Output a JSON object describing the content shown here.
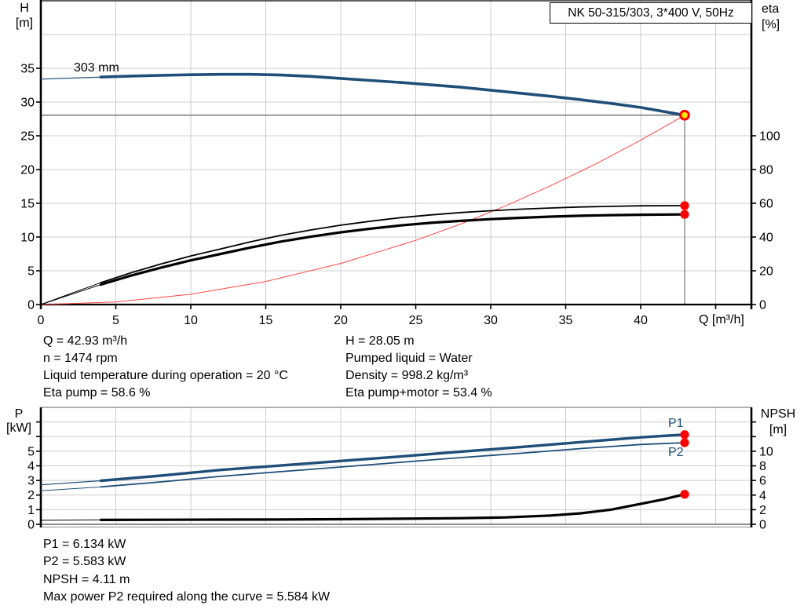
{
  "title_box": {
    "text": "NK 50-315/303, 3*400 V, 50Hz"
  },
  "colors": {
    "curve_blue": "#1f4e79",
    "system_red": "#ff4545",
    "curve_black": "#000000",
    "marker_red": "#ff0000",
    "marker_yellow": "#ffe600",
    "grid": "#cccccc",
    "duty_line": "#8c8c8c",
    "axis": "#000000"
  },
  "chart_data": [
    {
      "type": "line",
      "id": "head-efficiency-chart",
      "title": "NK 50-315/303, 3*400 V, 50Hz",
      "x": {
        "label": "Q [m³/h]",
        "ticks": [
          0,
          5,
          10,
          15,
          20,
          25,
          30,
          35,
          40
        ],
        "extra_ticks": [
          45
        ],
        "range": [
          0,
          47.4
        ],
        "grid": true
      },
      "y_left": {
        "label": "H",
        "unit": "[m]",
        "ticks": [
          0,
          5,
          10,
          15,
          20,
          25,
          30,
          35
        ],
        "range": [
          0,
          45
        ],
        "grid": true
      },
      "y_right": {
        "label": "eta",
        "unit": "[%]",
        "ticks": [
          0,
          20,
          40,
          60,
          80,
          100
        ],
        "range": [
          0,
          180
        ]
      },
      "series": [
        {
          "name": "pump-curve-303mm",
          "label": "303 mm",
          "axis": "left",
          "color_key": "curve_blue",
          "split_at": 4,
          "width_thin": 1.2,
          "width_thick": 3.6,
          "points": [
            [
              0,
              33.4
            ],
            [
              2,
              33.55
            ],
            [
              4,
              33.7
            ],
            [
              6,
              33.85
            ],
            [
              8,
              33.95
            ],
            [
              10,
              34.05
            ],
            [
              12,
              34.1
            ],
            [
              14,
              34.1
            ],
            [
              16,
              34.0
            ],
            [
              18,
              33.8
            ],
            [
              20,
              33.5
            ],
            [
              22,
              33.2
            ],
            [
              24,
              32.9
            ],
            [
              26,
              32.55
            ],
            [
              28,
              32.2
            ],
            [
              30,
              31.75
            ],
            [
              32,
              31.3
            ],
            [
              34,
              30.85
            ],
            [
              36,
              30.35
            ],
            [
              38,
              29.8
            ],
            [
              40,
              29.2
            ],
            [
              42.93,
              28.05
            ]
          ]
        },
        {
          "name": "system-curve",
          "label": "",
          "axis": "left",
          "color_key": "system_red",
          "split_at": null,
          "width_thin": 1,
          "width_thick": 1,
          "points": [
            [
              0,
              0
            ],
            [
              5,
              0.38
            ],
            [
              10,
              1.52
            ],
            [
              15,
              3.42
            ],
            [
              20,
              6.09
            ],
            [
              25,
              9.51
            ],
            [
              28,
              11.93
            ],
            [
              31,
              14.63
            ],
            [
              34,
              17.6
            ],
            [
              37,
              20.83
            ],
            [
              40,
              24.35
            ],
            [
              42.93,
              28.05
            ]
          ]
        },
        {
          "name": "eta-pump-curve",
          "label": "",
          "axis": "right",
          "color_key": "curve_black",
          "split_at": 4,
          "width_thin": 1,
          "width_thick": 1.8,
          "points": [
            [
              0,
              0
            ],
            [
              2,
              6.5
            ],
            [
              4,
              13
            ],
            [
              6,
              18.8
            ],
            [
              8,
              24
            ],
            [
              10,
              28.8
            ],
            [
              12,
              33
            ],
            [
              14,
              37.2
            ],
            [
              16,
              41
            ],
            [
              18,
              44.2
            ],
            [
              20,
              47
            ],
            [
              22,
              49.4
            ],
            [
              24,
              51.5
            ],
            [
              26,
              53.1
            ],
            [
              28,
              54.5
            ],
            [
              30,
              55.6
            ],
            [
              32,
              56.5
            ],
            [
              34,
              57.2
            ],
            [
              36,
              57.8
            ],
            [
              38,
              58.2
            ],
            [
              40,
              58.5
            ],
            [
              42.93,
              58.6
            ]
          ]
        },
        {
          "name": "eta-pump-motor-curve",
          "label": "",
          "axis": "right",
          "color_key": "curve_black",
          "split_at": 4,
          "width_thin": 1,
          "width_thick": 3.2,
          "points": [
            [
              0,
              0
            ],
            [
              2,
              5.9
            ],
            [
              4,
              11.8
            ],
            [
              6,
              17.1
            ],
            [
              8,
              21.8
            ],
            [
              10,
              26.2
            ],
            [
              12,
              30
            ],
            [
              14,
              33.8
            ],
            [
              16,
              37.3
            ],
            [
              18,
              40.2
            ],
            [
              20,
              42.8
            ],
            [
              22,
              45
            ],
            [
              24,
              46.9
            ],
            [
              26,
              48.4
            ],
            [
              28,
              49.6
            ],
            [
              30,
              50.6
            ],
            [
              32,
              51.4
            ],
            [
              34,
              52.1
            ],
            [
              36,
              52.6
            ],
            [
              38,
              53
            ],
            [
              40,
              53.2
            ],
            [
              42.93,
              53.4
            ]
          ]
        }
      ],
      "duty_point": {
        "q": 42.93,
        "h": 28.05
      },
      "end_markers": [
        {
          "series": "eta-pump-curve",
          "q": 42.93,
          "value": 58.6
        },
        {
          "series": "eta-pump-motor-curve",
          "q": 42.93,
          "value": 53.4
        }
      ]
    },
    {
      "type": "line",
      "id": "power-npsh-chart",
      "x": {
        "label": "",
        "ticks": [],
        "range": [
          0,
          47.4
        ],
        "grid": true
      },
      "y_left": {
        "label": "P",
        "unit": "[kW]",
        "ticks": [
          0,
          1,
          2,
          3,
          4,
          5
        ],
        "unlabeled_ticks": [
          6,
          7
        ],
        "range": [
          0,
          8
        ],
        "grid": true
      },
      "y_right": {
        "label": "NPSH",
        "unit": "[m]",
        "ticks": [
          0,
          2,
          4,
          6,
          8,
          10
        ],
        "unlabeled_ticks": [
          12,
          14
        ],
        "range": [
          0,
          16
        ]
      },
      "series": [
        {
          "name": "p1-curve",
          "label": "P1",
          "axis": "left",
          "color_key": "curve_blue",
          "split_at": 4,
          "width_thin": 1.2,
          "width_thick": 3.4,
          "points": [
            [
              0,
              2.7
            ],
            [
              4,
              2.98
            ],
            [
              8,
              3.33
            ],
            [
              12,
              3.72
            ],
            [
              16,
              4.02
            ],
            [
              20,
              4.33
            ],
            [
              24,
              4.64
            ],
            [
              28,
              4.97
            ],
            [
              32,
              5.28
            ],
            [
              36,
              5.62
            ],
            [
              40,
              5.95
            ],
            [
              42.93,
              6.134
            ]
          ]
        },
        {
          "name": "p2-curve",
          "label": "P2",
          "axis": "left",
          "color_key": "curve_blue",
          "split_at": 4,
          "width_thin": 1,
          "width_thick": 1.8,
          "points": [
            [
              0,
              2.3
            ],
            [
              4,
              2.56
            ],
            [
              8,
              2.9
            ],
            [
              12,
              3.28
            ],
            [
              16,
              3.6
            ],
            [
              20,
              3.92
            ],
            [
              24,
              4.24
            ],
            [
              28,
              4.56
            ],
            [
              32,
              4.86
            ],
            [
              36,
              5.18
            ],
            [
              40,
              5.46
            ],
            [
              42.93,
              5.583
            ]
          ]
        },
        {
          "name": "npsh-curve",
          "label": "",
          "axis": "right",
          "color_key": "curve_black",
          "split_at": 4,
          "width_thin": 1,
          "width_thick": 3.2,
          "points": [
            [
              0,
              0.55
            ],
            [
              4,
              0.6
            ],
            [
              8,
              0.62
            ],
            [
              12,
              0.64
            ],
            [
              16,
              0.66
            ],
            [
              20,
              0.7
            ],
            [
              24,
              0.76
            ],
            [
              28,
              0.84
            ],
            [
              31,
              0.95
            ],
            [
              34,
              1.2
            ],
            [
              36,
              1.5
            ],
            [
              38,
              2.0
            ],
            [
              40,
              2.8
            ],
            [
              41.5,
              3.4
            ],
            [
              42.93,
              4.11
            ]
          ]
        }
      ],
      "end_markers": [
        {
          "series": "p1-curve",
          "q": 42.93,
          "value": 6.134
        },
        {
          "series": "p2-curve",
          "q": 42.93,
          "value": 5.583
        },
        {
          "series": "npsh-curve",
          "q": 42.93,
          "value": 4.11
        }
      ]
    }
  ],
  "info_top": {
    "left": [
      "Q = 42.93 m³/h",
      "n = 1474 rpm",
      "Liquid temperature during operation = 20 °C",
      "Eta pump = 58.6 %"
    ],
    "right": [
      "H = 28.05 m",
      "Pumped liquid = Water",
      "Density = 998.2 kg/m³",
      "Eta pump+motor = 53.4 %"
    ]
  },
  "info_bottom": {
    "lines": [
      "P1 = 6.134 kW",
      "P2 = 5.583 kW",
      "NPSH = 4.11 m",
      "Max power P2 required along the curve = 5.584 kW"
    ]
  }
}
